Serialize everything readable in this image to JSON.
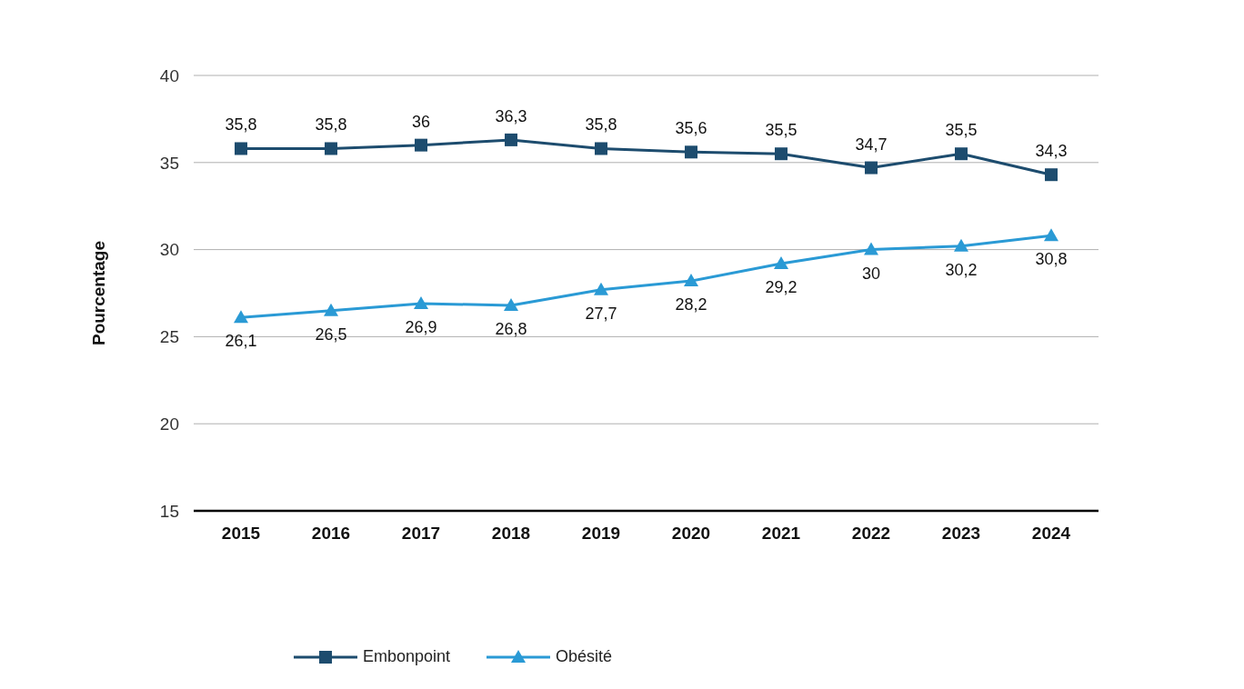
{
  "chart_data": {
    "type": "line",
    "ylabel": "Pourcentage",
    "categories": [
      "2015",
      "2016",
      "2017",
      "2018",
      "2019",
      "2020",
      "2021",
      "2022",
      "2023",
      "2024"
    ],
    "series": [
      {
        "name": "Embonpoint",
        "color": "#1d4c6e",
        "marker": "square",
        "values": [
          35.8,
          35.8,
          36,
          36.3,
          35.8,
          35.6,
          35.5,
          34.7,
          35.5,
          34.3
        ],
        "value_labels": [
          "35,8",
          "35,8",
          "36",
          "36,3",
          "35,8",
          "35,6",
          "35,5",
          "34,7",
          "35,5",
          "34,3"
        ]
      },
      {
        "name": "Obésité",
        "color": "#2a9ad5",
        "marker": "triangle",
        "values": [
          26.1,
          26.5,
          26.9,
          26.8,
          27.7,
          28.2,
          29.2,
          30,
          30.2,
          30.8
        ],
        "value_labels": [
          "26,1",
          "26,5",
          "26,9",
          "26,8",
          "27,7",
          "28,2",
          "29,2",
          "30",
          "30,2",
          "30,8"
        ]
      }
    ],
    "ylim": [
      15,
      40
    ],
    "yticks": [
      15,
      20,
      25,
      30,
      35,
      40
    ],
    "grid": "y",
    "legend": "bottom left",
    "line_style": "solid"
  }
}
